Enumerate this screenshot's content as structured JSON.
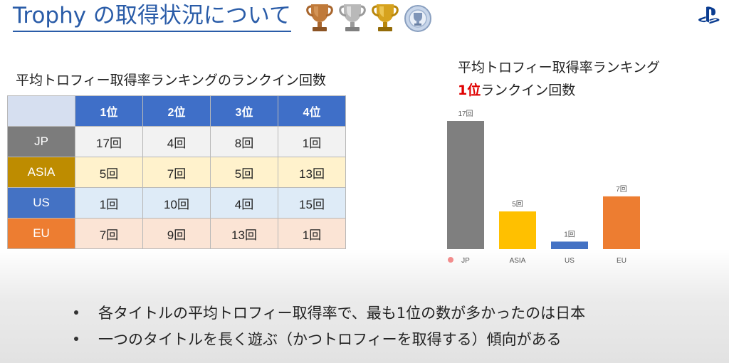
{
  "header": {
    "title": "Trophy の取得状況について",
    "trophy_icons": [
      "bronze-trophy-icon",
      "silver-trophy-icon",
      "gold-trophy-icon",
      "platinum-trophy-icon"
    ],
    "logo": "playstation-logo"
  },
  "table": {
    "title": "平均トロフィー取得率ランキングのランクイン回数",
    "columns": [
      "1位",
      "2位",
      "3位",
      "4位"
    ],
    "rows": [
      {
        "region": "JP",
        "cells": [
          "17回",
          "4回",
          "8回",
          "1回"
        ]
      },
      {
        "region": "ASIA",
        "cells": [
          "5回",
          "7回",
          "5回",
          "13回"
        ]
      },
      {
        "region": "US",
        "cells": [
          "1回",
          "10回",
          "4回",
          "15回"
        ]
      },
      {
        "region": "EU",
        "cells": [
          "7回",
          "9回",
          "13回",
          "1回"
        ]
      }
    ]
  },
  "chart": {
    "title_line1": "平均トロフィー取得率ランキング",
    "title_line2_highlight": "1位",
    "title_line2_rest": "ランクイン回数"
  },
  "chart_data": {
    "type": "bar",
    "categories": [
      "JP",
      "ASIA",
      "US",
      "EU"
    ],
    "values": [
      17,
      5,
      1,
      7
    ],
    "data_labels": [
      "17回",
      "5回",
      "1回",
      "7回"
    ],
    "colors": [
      "#7f7f7f",
      "#ffc000",
      "#4472c4",
      "#ed7d31"
    ],
    "ylim": [
      0,
      17
    ],
    "grid": false,
    "legend": "none"
  },
  "bullets": [
    "各タイトルの平均トロフィー取得率で、最も1位の数が多かったのは日本",
    "一つのタイトルを長く遊ぶ（かつトロフィーを取得する）傾向がある"
  ]
}
